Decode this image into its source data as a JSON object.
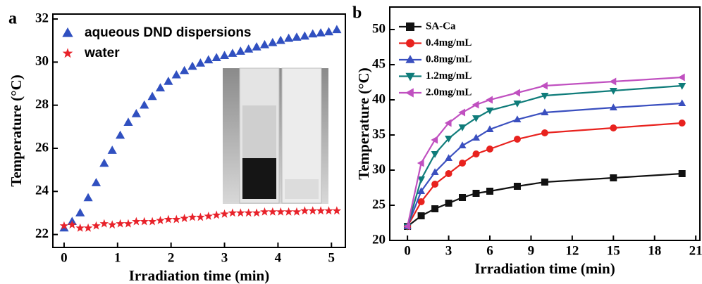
{
  "chart_data": [
    {
      "type": "scatter",
      "panel_label": "a",
      "x_label": "Irradiation time (min)",
      "y_label": "Temperature (°C)",
      "xlim": [
        -0.21,
        5.26
      ],
      "ylim": [
        21.4,
        32.23
      ],
      "xticks": [
        0,
        1,
        2,
        3,
        4,
        5
      ],
      "yticks": [
        22,
        24,
        26,
        28,
        30,
        32
      ],
      "x": [
        0,
        0.15,
        0.3,
        0.45,
        0.6,
        0.75,
        0.9,
        1.05,
        1.2,
        1.35,
        1.5,
        1.65,
        1.8,
        1.95,
        2.1,
        2.25,
        2.4,
        2.55,
        2.7,
        2.85,
        3,
        3.15,
        3.3,
        3.45,
        3.6,
        3.75,
        3.9,
        4.05,
        4.2,
        4.35,
        4.5,
        4.65,
        4.8,
        4.95,
        5.1
      ],
      "series": [
        {
          "name": "aqueous DND dispersions",
          "color": "#3050c0",
          "marker": "triangle-up",
          "values": [
            22.3,
            22.6,
            23.0,
            23.7,
            24.4,
            25.3,
            25.9,
            26.6,
            27.2,
            27.6,
            28.0,
            28.4,
            28.8,
            29.1,
            29.4,
            29.6,
            29.8,
            29.95,
            30.1,
            30.2,
            30.3,
            30.4,
            30.5,
            30.6,
            30.7,
            30.8,
            30.9,
            31.0,
            31.1,
            31.15,
            31.2,
            31.3,
            31.35,
            31.4,
            31.5
          ]
        },
        {
          "name": "water",
          "color": "#e8222a",
          "marker": "star",
          "values": [
            22.4,
            22.45,
            22.3,
            22.3,
            22.4,
            22.5,
            22.45,
            22.5,
            22.5,
            22.6,
            22.6,
            22.6,
            22.65,
            22.7,
            22.7,
            22.75,
            22.8,
            22.8,
            22.85,
            22.9,
            22.95,
            23.0,
            23.0,
            23.0,
            23.0,
            23.05,
            23.05,
            23.05,
            23.05,
            23.05,
            23.1,
            23.1,
            23.1,
            23.1,
            23.1
          ]
        }
      ]
    },
    {
      "type": "line",
      "panel_label": "b",
      "x_label": "Irradiation time (min)",
      "y_label": "Temperature (°C)",
      "xlim": [
        -1.29,
        21.3
      ],
      "ylim": [
        20,
        53.2
      ],
      "xticks": [
        0,
        3,
        6,
        9,
        12,
        15,
        18,
        21
      ],
      "yticks": [
        20,
        25,
        30,
        35,
        40,
        45,
        50
      ],
      "x": [
        0,
        1,
        2,
        3,
        4,
        5,
        6,
        8,
        10,
        15,
        20
      ],
      "series": [
        {
          "name": "SA-Ca",
          "color": "#111111",
          "marker": "square",
          "values": [
            22,
            23.5,
            24.5,
            25.3,
            26.1,
            26.7,
            27,
            27.7,
            28.3,
            28.9,
            29.5
          ]
        },
        {
          "name": "0.4mg/mL",
          "color": "#e8221e",
          "marker": "circle",
          "values": [
            22,
            25.5,
            28,
            29.5,
            31,
            32.3,
            33,
            34.4,
            35.3,
            36,
            36.7
          ]
        },
        {
          "name": "0.8mg/mL",
          "color": "#3a4fbf",
          "marker": "triangle-up",
          "values": [
            22,
            27,
            29.7,
            31.7,
            33.5,
            34.6,
            35.8,
            37.2,
            38.2,
            38.9,
            39.5
          ]
        },
        {
          "name": "1.2mg/mL",
          "color": "#0f7c7a",
          "marker": "triangle-down",
          "values": [
            22,
            28.7,
            32.3,
            34.5,
            36.1,
            37.4,
            38.5,
            39.5,
            40.6,
            41.3,
            42
          ]
        },
        {
          "name": "2.0mg/mL",
          "color": "#c050c0",
          "marker": "triangle-left",
          "values": [
            22,
            31,
            34.3,
            36.7,
            38.2,
            39.3,
            40,
            41,
            42,
            42.6,
            43.2
          ]
        }
      ]
    }
  ]
}
